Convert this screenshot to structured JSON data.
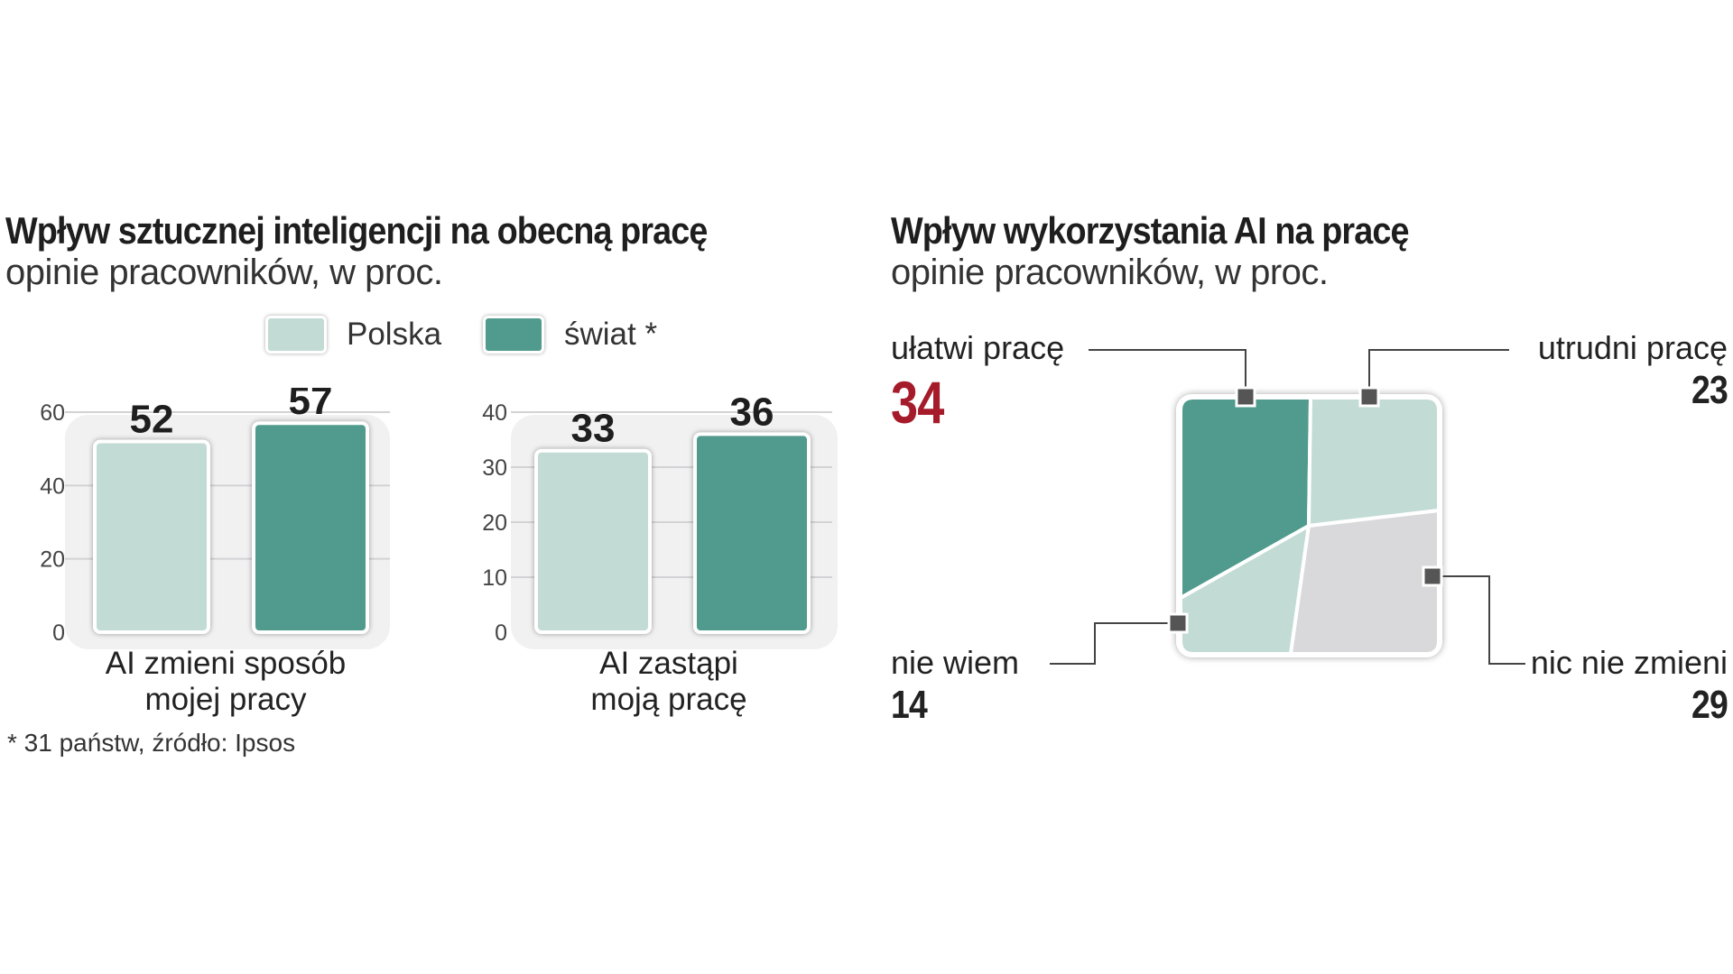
{
  "colors": {
    "polska": "#c2dbd4",
    "swiat": "#509b8d",
    "grey": "#d9d9db",
    "accent": "#a51b2a"
  },
  "left": {
    "title": "Wpływ sztucznej inteligencji na obecną pracę",
    "subtitle": "opinie pracowników, w proc.",
    "legend": [
      "Polska",
      "świat *"
    ],
    "footnote": "* 31 państw, źródło: Ipsos",
    "cat1_line1": "AI zmieni sposób",
    "cat1_line2": "mojej pracy",
    "cat2_line1": "AI zastąpi",
    "cat2_line2": "moją pracę"
  },
  "right": {
    "title": "Wpływ wykorzystania AI na pracę",
    "subtitle": "opinie pracowników, w proc.",
    "items": [
      {
        "label": "ułatwi pracę",
        "value": "34"
      },
      {
        "label": "utrudni pracę",
        "value": "23"
      },
      {
        "label": "nie wiem",
        "value": "14"
      },
      {
        "label": "nic nie zmieni",
        "value": "29"
      }
    ]
  },
  "chart_data": [
    {
      "type": "bar",
      "title": "AI zmieni sposób mojej pracy",
      "categories": [
        "Polska",
        "świat *"
      ],
      "values": [
        52,
        57
      ],
      "ylim": [
        0,
        60
      ],
      "yticks": [
        0,
        20,
        40,
        60
      ]
    },
    {
      "type": "bar",
      "title": "AI zastąpi moją pracę",
      "categories": [
        "Polska",
        "świat *"
      ],
      "values": [
        33,
        36
      ],
      "ylim": [
        0,
        40
      ],
      "yticks": [
        0,
        10,
        20,
        30,
        40
      ]
    },
    {
      "type": "pie",
      "title": "Wpływ wykorzystania AI na pracę",
      "categories": [
        "ułatwi pracę",
        "utrudni pracę",
        "nie wiem",
        "nic nie zmieni"
      ],
      "values": [
        34,
        23,
        14,
        29
      ]
    }
  ]
}
